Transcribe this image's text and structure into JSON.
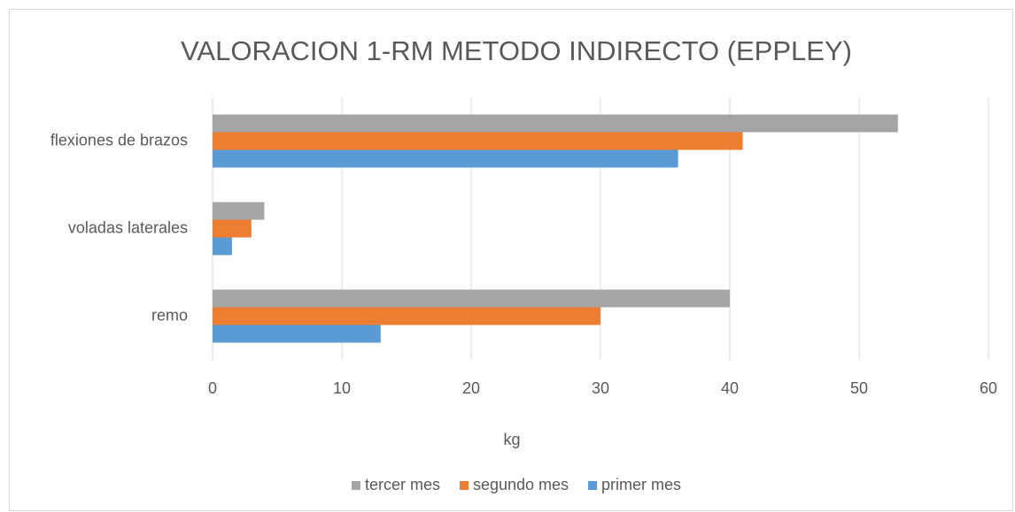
{
  "chart_data": {
    "type": "bar",
    "orientation": "horizontal",
    "title": "VALORACION 1-RM METODO INDIRECTO (EPPLEY)",
    "xlabel": "kg",
    "categories": [
      "remo",
      "voladas laterales",
      "flexiones de brazos"
    ],
    "series": [
      {
        "name": "primer mes",
        "color": "#5b9bd5",
        "values": [
          13,
          1.5,
          36
        ]
      },
      {
        "name": "segundo mes",
        "color": "#ed7d31",
        "values": [
          30,
          3,
          41
        ]
      },
      {
        "name": "tercer mes",
        "color": "#a5a5a5",
        "values": [
          40,
          4,
          53
        ]
      }
    ],
    "xlim": [
      0,
      60
    ],
    "xticks": [
      0,
      10,
      20,
      30,
      40,
      50,
      60
    ],
    "grid": true,
    "legend": "bottom"
  }
}
